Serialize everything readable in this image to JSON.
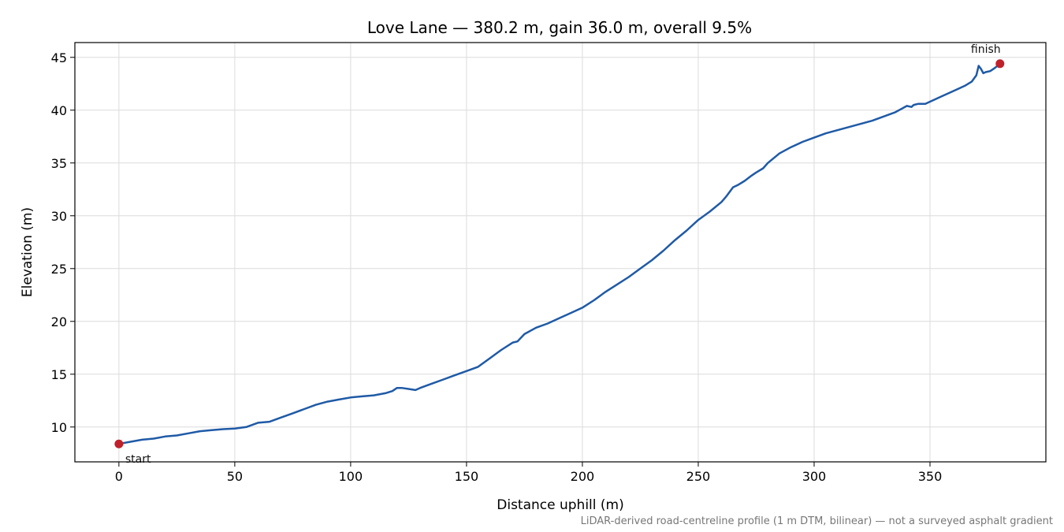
{
  "chart_data": {
    "type": "line",
    "title": "Love Lane — 380.2 m, gain 36.0 m, overall 9.5%",
    "xlabel": "Distance uphill (m)",
    "ylabel": "Elevation (m)",
    "xlim": [
      -19,
      400
    ],
    "ylim": [
      6.7,
      46.4
    ],
    "xticks": [
      0,
      50,
      100,
      150,
      200,
      250,
      300,
      350
    ],
    "yticks": [
      10,
      15,
      20,
      25,
      30,
      35,
      40,
      45
    ],
    "grid": true,
    "line_color": "#1f5aa6",
    "marker_color": "#c0202a",
    "series": [
      {
        "x": [
          0,
          5,
          10,
          15,
          20,
          25,
          30,
          35,
          40,
          45,
          50,
          55,
          60,
          65,
          70,
          75,
          80,
          85,
          90,
          95,
          100,
          105,
          110,
          115,
          118,
          120,
          122,
          125,
          128,
          130,
          135,
          140,
          145,
          150,
          155,
          160,
          165,
          170,
          172,
          175,
          180,
          185,
          190,
          195,
          200,
          205,
          210,
          215,
          220,
          225,
          230,
          235,
          240,
          245,
          250,
          255,
          260,
          262,
          265,
          267,
          270,
          273,
          275,
          278,
          280,
          285,
          290,
          295,
          300,
          305,
          310,
          315,
          320,
          325,
          330,
          335,
          340,
          342,
          343,
          345,
          348,
          350,
          355,
          360,
          365,
          368,
          370,
          371,
          372,
          373,
          374,
          376,
          378,
          380.2
        ],
        "y": [
          8.4,
          8.6,
          8.8,
          8.9,
          9.1,
          9.2,
          9.4,
          9.6,
          9.7,
          9.8,
          9.85,
          10.0,
          10.4,
          10.5,
          10.9,
          11.3,
          11.7,
          12.1,
          12.4,
          12.6,
          12.8,
          12.9,
          13.0,
          13.2,
          13.4,
          13.7,
          13.7,
          13.6,
          13.5,
          13.7,
          14.1,
          14.5,
          14.9,
          15.3,
          15.7,
          16.5,
          17.3,
          18.0,
          18.1,
          18.8,
          19.4,
          19.8,
          20.3,
          20.8,
          21.3,
          22.0,
          22.8,
          23.5,
          24.2,
          25.0,
          25.8,
          26.7,
          27.7,
          28.6,
          29.6,
          30.4,
          31.3,
          31.8,
          32.7,
          32.9,
          33.3,
          33.8,
          34.1,
          34.5,
          35.0,
          35.9,
          36.5,
          37.0,
          37.4,
          37.8,
          38.1,
          38.4,
          38.7,
          39.0,
          39.4,
          39.8,
          40.4,
          40.3,
          40.5,
          40.6,
          40.6,
          40.8,
          41.3,
          41.8,
          42.3,
          42.7,
          43.3,
          44.2,
          43.9,
          43.5,
          43.6,
          43.7,
          44.0,
          44.4
        ]
      }
    ],
    "annotations": [
      {
        "text": "start",
        "x": 0,
        "y": 8.4
      },
      {
        "text": "finish",
        "x": 380.2,
        "y": 44.4
      }
    ],
    "footnote": "LiDAR-derived road-centreline profile (1 m DTM, bilinear) — not a surveyed asphalt gradient"
  }
}
